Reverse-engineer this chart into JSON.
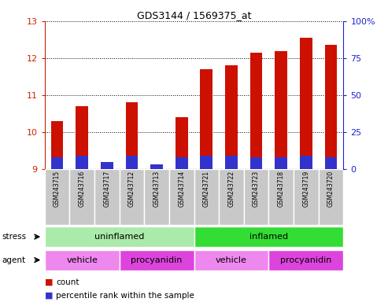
{
  "title": "GDS3144 / 1569375_at",
  "samples": [
    "GSM243715",
    "GSM243716",
    "GSM243717",
    "GSM243712",
    "GSM243713",
    "GSM243714",
    "GSM243721",
    "GSM243722",
    "GSM243723",
    "GSM243718",
    "GSM243719",
    "GSM243720"
  ],
  "count_values": [
    10.3,
    10.7,
    9.2,
    10.8,
    9.05,
    10.4,
    11.7,
    11.8,
    12.15,
    12.2,
    12.55,
    12.35
  ],
  "percentile_right_vals": [
    8,
    9,
    5,
    9,
    3,
    8,
    9,
    9,
    8,
    8,
    9,
    8
  ],
  "bar_bottom": 9.0,
  "ylim_left": [
    9.0,
    13.0
  ],
  "ylim_right": [
    0,
    100
  ],
  "yticks_left": [
    9,
    10,
    11,
    12,
    13
  ],
  "yticks_right": [
    0,
    25,
    50,
    75,
    100
  ],
  "ytick_labels_right": [
    "0",
    "25",
    "50",
    "75",
    "100%"
  ],
  "stress_groups": [
    {
      "label": "uninflamed",
      "start": 0,
      "end": 6,
      "color": "#aaeaaa"
    },
    {
      "label": "inflamed",
      "start": 6,
      "end": 12,
      "color": "#33dd33"
    }
  ],
  "agent_groups": [
    {
      "label": "vehicle",
      "start": 0,
      "end": 3,
      "color": "#ee88ee"
    },
    {
      "label": "procyanidin",
      "start": 3,
      "end": 6,
      "color": "#dd44dd"
    },
    {
      "label": "vehicle",
      "start": 6,
      "end": 9,
      "color": "#ee88ee"
    },
    {
      "label": "procyanidin",
      "start": 9,
      "end": 12,
      "color": "#dd44dd"
    }
  ],
  "bar_color": "#cc1100",
  "percentile_color": "#3333cc",
  "left_axis_color": "#cc2200",
  "right_axis_color": "#2222cc",
  "plot_bg_color": "#ffffff",
  "label_bg_color": "#c8c8c8"
}
